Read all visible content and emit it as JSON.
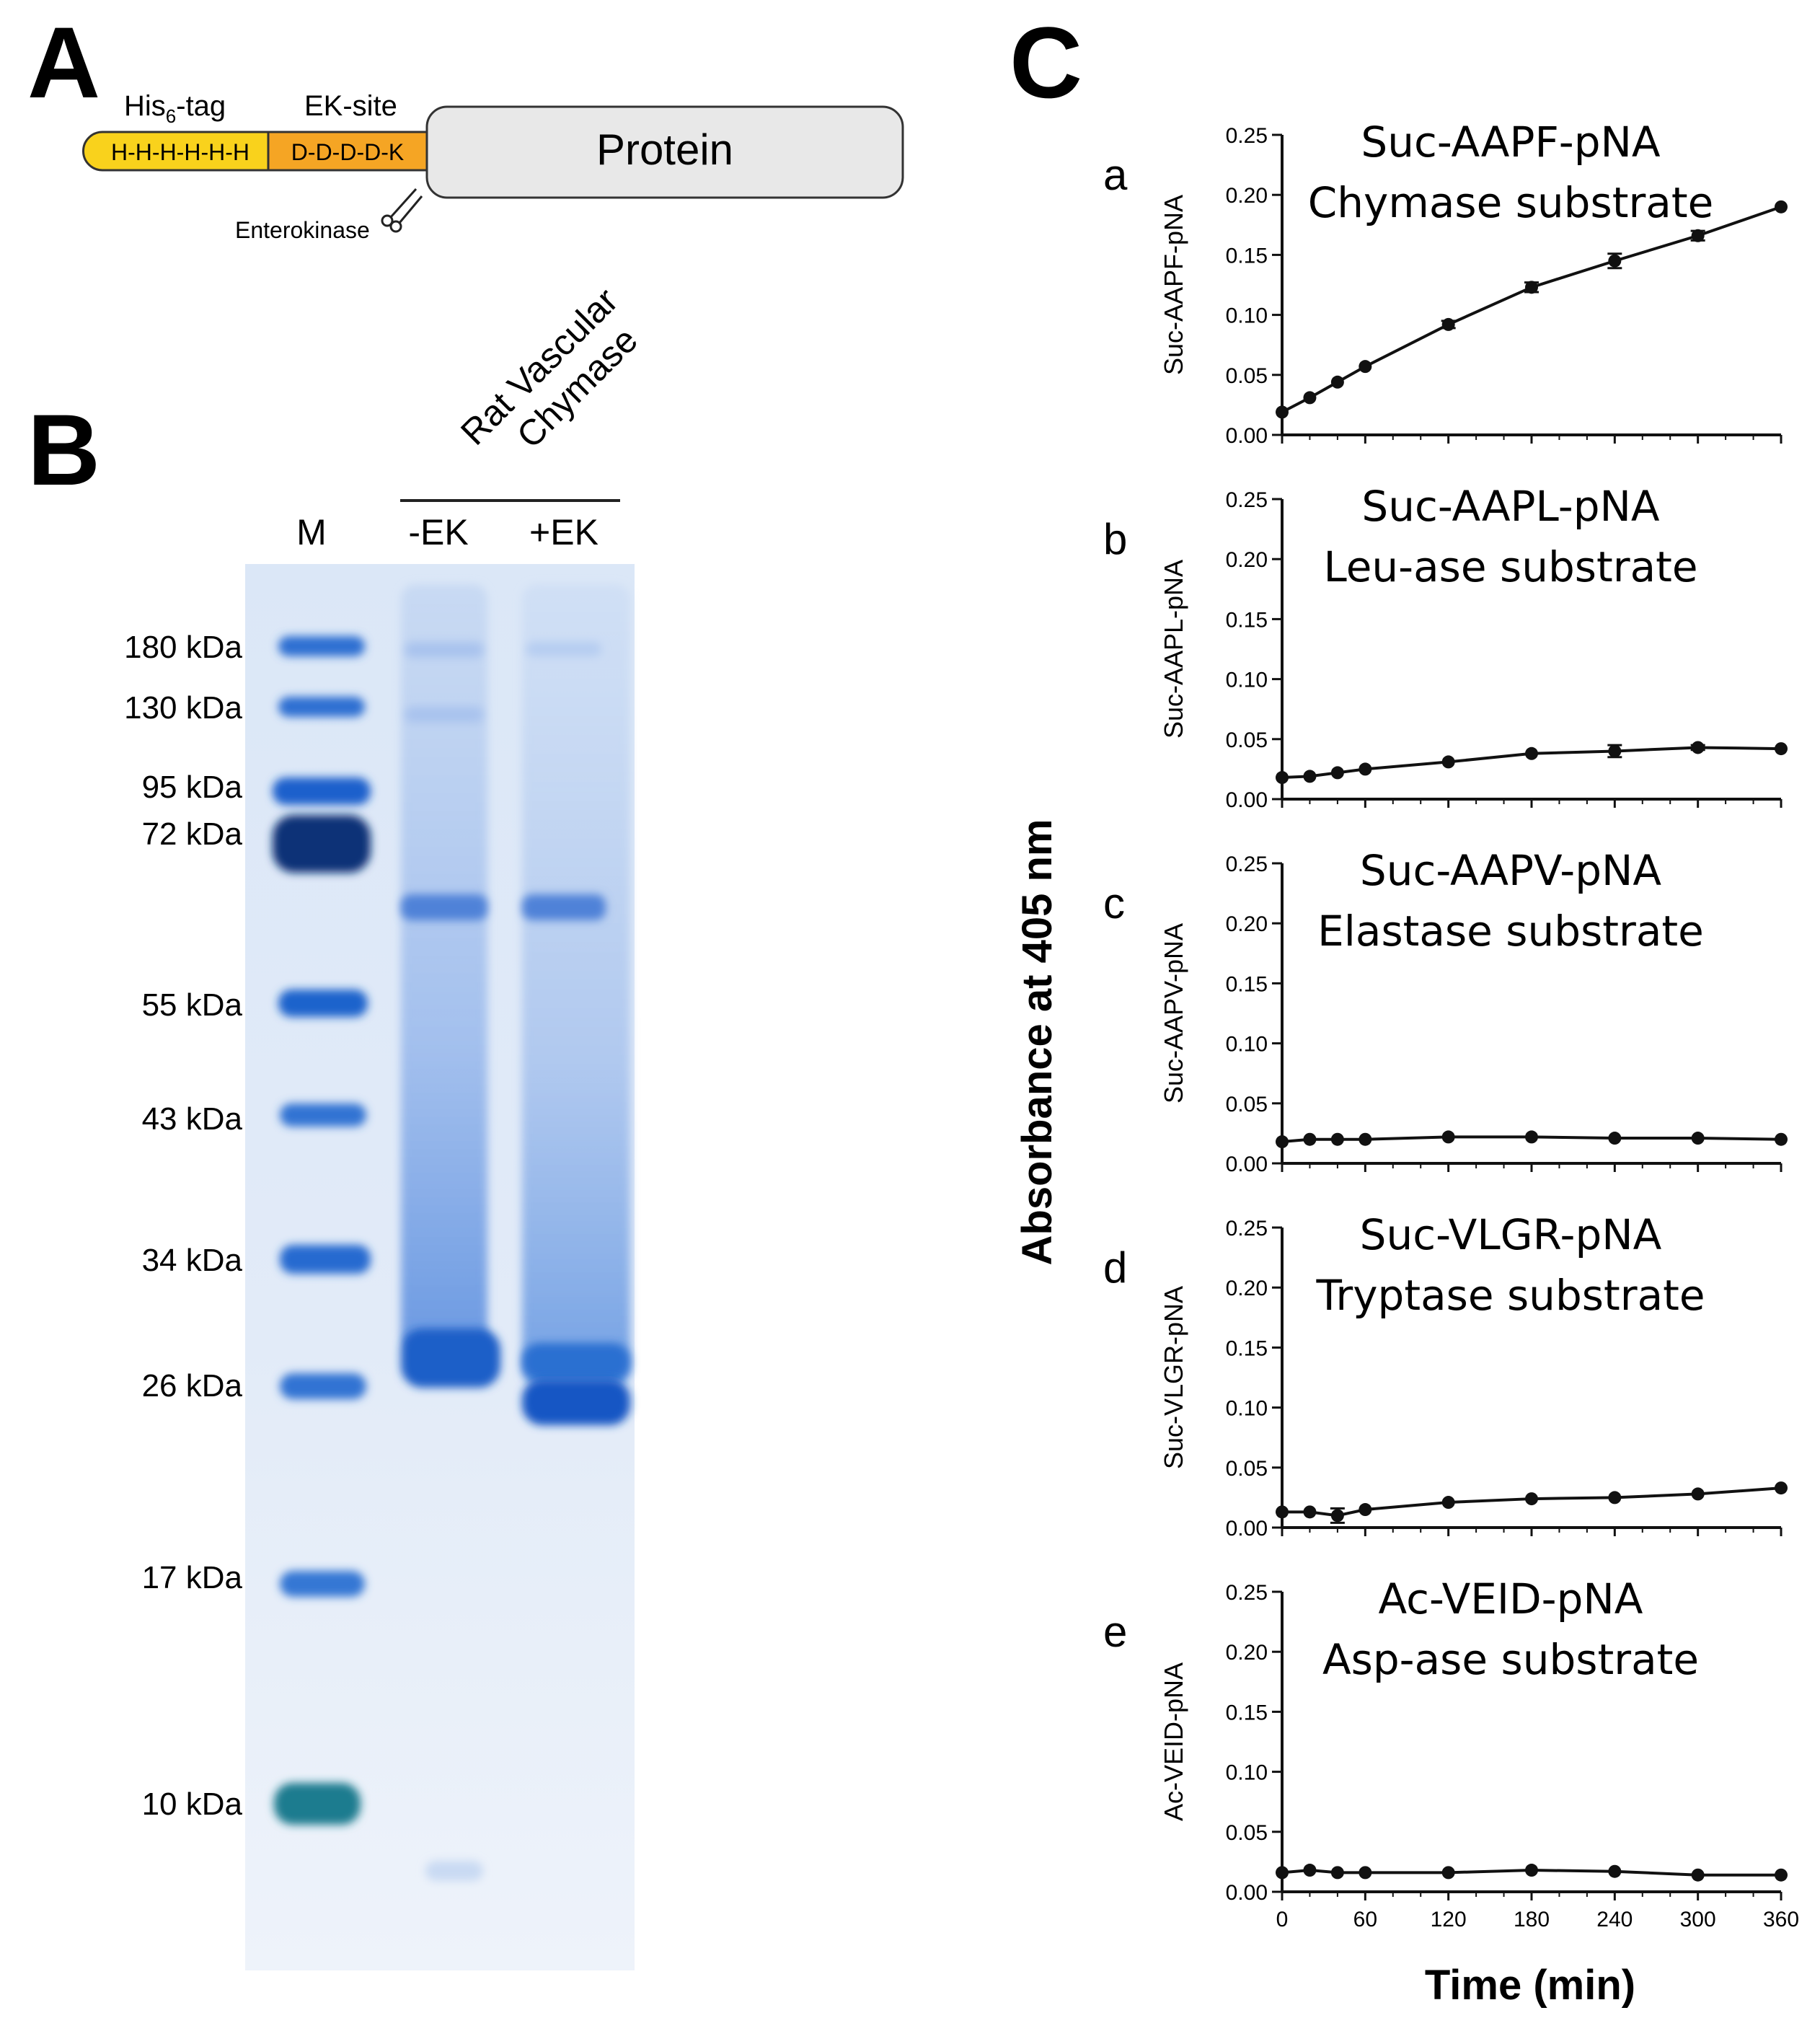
{
  "panel_a": {
    "letter": "A",
    "his_tag_label": "His",
    "his_tag_sub": "6",
    "his_tag_suffix": "-tag",
    "ek_site_label": "EK-site",
    "his_seq": "H-H-H-H-H-H",
    "ek_seq": "D-D-D-D-K",
    "protein_label": "Protein",
    "enzyme_label": "Enterokinase",
    "colors": {
      "his": "#f9d21c",
      "ek": "#f5a524",
      "protein": "#e8e8e8"
    }
  },
  "panel_b": {
    "letter": "B",
    "lane_group_line1": "Rat Vascular",
    "lane_group_line2": "Chymase",
    "lane_marker": "M",
    "lane_minus": "-EK",
    "lane_plus": "+EK",
    "markers": [
      {
        "label": "180 kDa",
        "kda": 180
      },
      {
        "label": "130 kDa",
        "kda": 130
      },
      {
        "label": "95 kDa",
        "kda": 95
      },
      {
        "label": "72 kDa",
        "kda": 72
      },
      {
        "label": "55 kDa",
        "kda": 55
      },
      {
        "label": "43 kDa",
        "kda": 43
      },
      {
        "label": "34 kDa",
        "kda": 34
      },
      {
        "label": "26 kDa",
        "kda": 26
      },
      {
        "label": "17 kDa",
        "kda": 17
      },
      {
        "label": "10 kDa",
        "kda": 10
      }
    ],
    "colors": {
      "gel": "#e6eef9",
      "band": "#1b5fc8",
      "band_dark": "#0a2a66",
      "band_teal": "#1d7c8f"
    }
  },
  "panel_c": {
    "letter": "C",
    "shared_ylabel": "Absorbance at 405 nm",
    "shared_xlabel": "Time (min)"
  },
  "chart_data": [
    {
      "type": "line",
      "panel": "a",
      "title": "Suc-AAPF-pNA",
      "subtitle": "Chymase substrate",
      "ylabel": "Suc-AAPF-pNA",
      "ylim": [
        0,
        0.25
      ],
      "yticks": [
        "0.00",
        "0.05",
        "0.10",
        "0.15",
        "0.20",
        "0.25"
      ],
      "x": [
        0,
        20,
        40,
        60,
        120,
        180,
        240,
        300,
        360
      ],
      "values": [
        0.019,
        0.031,
        0.044,
        0.057,
        0.092,
        0.123,
        0.145,
        0.166,
        0.19
      ],
      "errors": [
        0,
        0,
        0,
        0,
        0.003,
        0.004,
        0.006,
        0.004,
        0
      ]
    },
    {
      "type": "line",
      "panel": "b",
      "title": "Suc-AAPL-pNA",
      "subtitle": "Leu-ase substrate",
      "ylabel": "Suc-AAPL-pNA",
      "ylim": [
        0,
        0.25
      ],
      "yticks": [
        "0.00",
        "0.05",
        "0.10",
        "0.15",
        "0.20",
        "0.25"
      ],
      "x": [
        0,
        20,
        40,
        60,
        120,
        180,
        240,
        300,
        360
      ],
      "values": [
        0.018,
        0.019,
        0.022,
        0.025,
        0.031,
        0.038,
        0.04,
        0.043,
        0.042
      ],
      "errors": [
        0,
        0,
        0,
        0,
        0,
        0,
        0.005,
        0.002,
        0
      ]
    },
    {
      "type": "line",
      "panel": "c",
      "title": "Suc-AAPV-pNA",
      "subtitle": "Elastase substrate",
      "ylabel": "Suc-AAPV-pNA",
      "ylim": [
        0,
        0.25
      ],
      "yticks": [
        "0.00",
        "0.05",
        "0.10",
        "0.15",
        "0.20",
        "0.25"
      ],
      "x": [
        0,
        20,
        40,
        60,
        120,
        180,
        240,
        300,
        360
      ],
      "values": [
        0.018,
        0.02,
        0.02,
        0.02,
        0.022,
        0.022,
        0.021,
        0.021,
        0.02
      ],
      "errors": [
        0,
        0,
        0,
        0,
        0,
        0,
        0,
        0,
        0
      ]
    },
    {
      "type": "line",
      "panel": "d",
      "title": "Suc-VLGR-pNA",
      "subtitle": "Tryptase substrate",
      "ylabel": "Suc-VLGR-pNA",
      "ylim": [
        0,
        0.25
      ],
      "yticks": [
        "0.00",
        "0.05",
        "0.10",
        "0.15",
        "0.20",
        "0.25"
      ],
      "x": [
        0,
        20,
        40,
        60,
        120,
        180,
        240,
        300,
        360
      ],
      "values": [
        0.013,
        0.013,
        0.01,
        0.015,
        0.021,
        0.024,
        0.025,
        0.028,
        0.033
      ],
      "errors": [
        0,
        0,
        0.006,
        0,
        0,
        0,
        0,
        0,
        0
      ]
    },
    {
      "type": "line",
      "panel": "e",
      "title": "Ac-VEID-pNA",
      "subtitle": "Asp-ase substrate",
      "ylabel": "Ac-VEID-pNA",
      "ylim": [
        0,
        0.25
      ],
      "yticks": [
        "0.00",
        "0.05",
        "0.10",
        "0.15",
        "0.20",
        "0.25"
      ],
      "x": [
        0,
        20,
        40,
        60,
        120,
        180,
        240,
        300,
        360
      ],
      "xticks": [
        "0",
        "60",
        "120",
        "180",
        "240",
        "300",
        "360"
      ],
      "values": [
        0.016,
        0.018,
        0.016,
        0.016,
        0.016,
        0.018,
        0.017,
        0.014,
        0.014
      ],
      "errors": [
        0,
        0,
        0,
        0,
        0,
        0,
        0,
        0,
        0
      ]
    }
  ]
}
